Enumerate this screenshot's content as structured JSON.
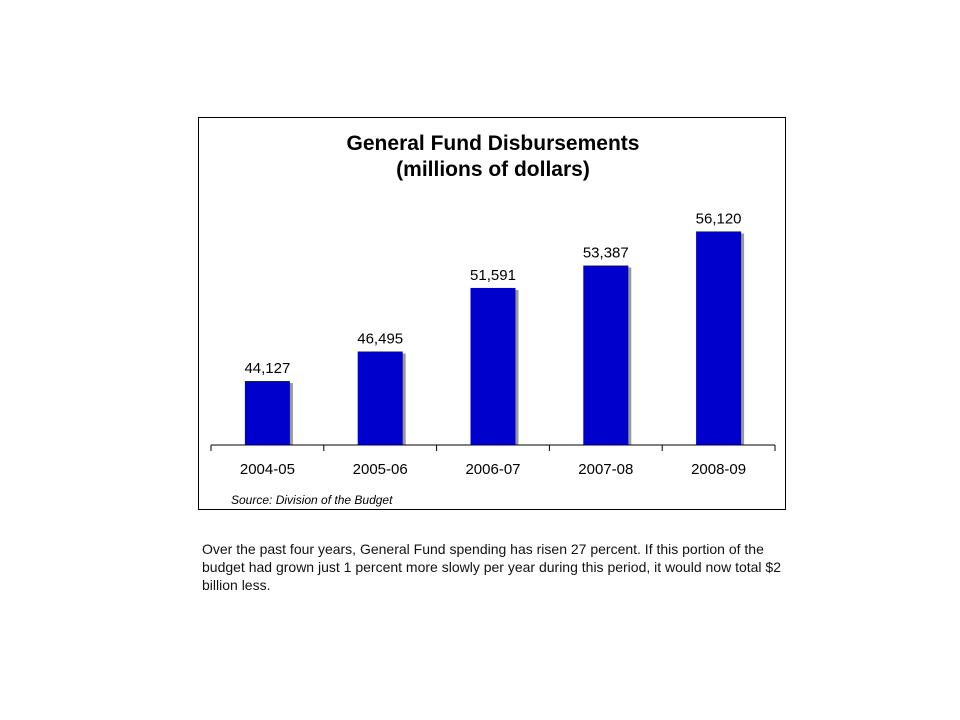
{
  "chart_data": {
    "type": "bar",
    "title_lines": [
      "General Fund Disbursements",
      "(millions of dollars)"
    ],
    "categories": [
      "2004-05",
      "2005-06",
      "2006-07",
      "2007-08",
      "2008-09"
    ],
    "values": [
      44127,
      46495,
      51591,
      53387,
      56120
    ],
    "value_labels": [
      "44,127",
      "46,495",
      "51,591",
      "53,387",
      "56,120"
    ],
    "source": "Source: Division of the Budget",
    "xlabel": "",
    "ylabel": "",
    "ylim": [
      39000,
      58000
    ],
    "grid": false,
    "legend": "none",
    "colors": {
      "bar": "#0000CC",
      "shadow": "#9a9a9a",
      "axis": "#000000"
    }
  },
  "caption": "Over the past four years, General Fund spending has risen 27 percent.  If this portion of the budget had grown just 1 percent more slowly per year during this period, it would now total $2 billion less."
}
